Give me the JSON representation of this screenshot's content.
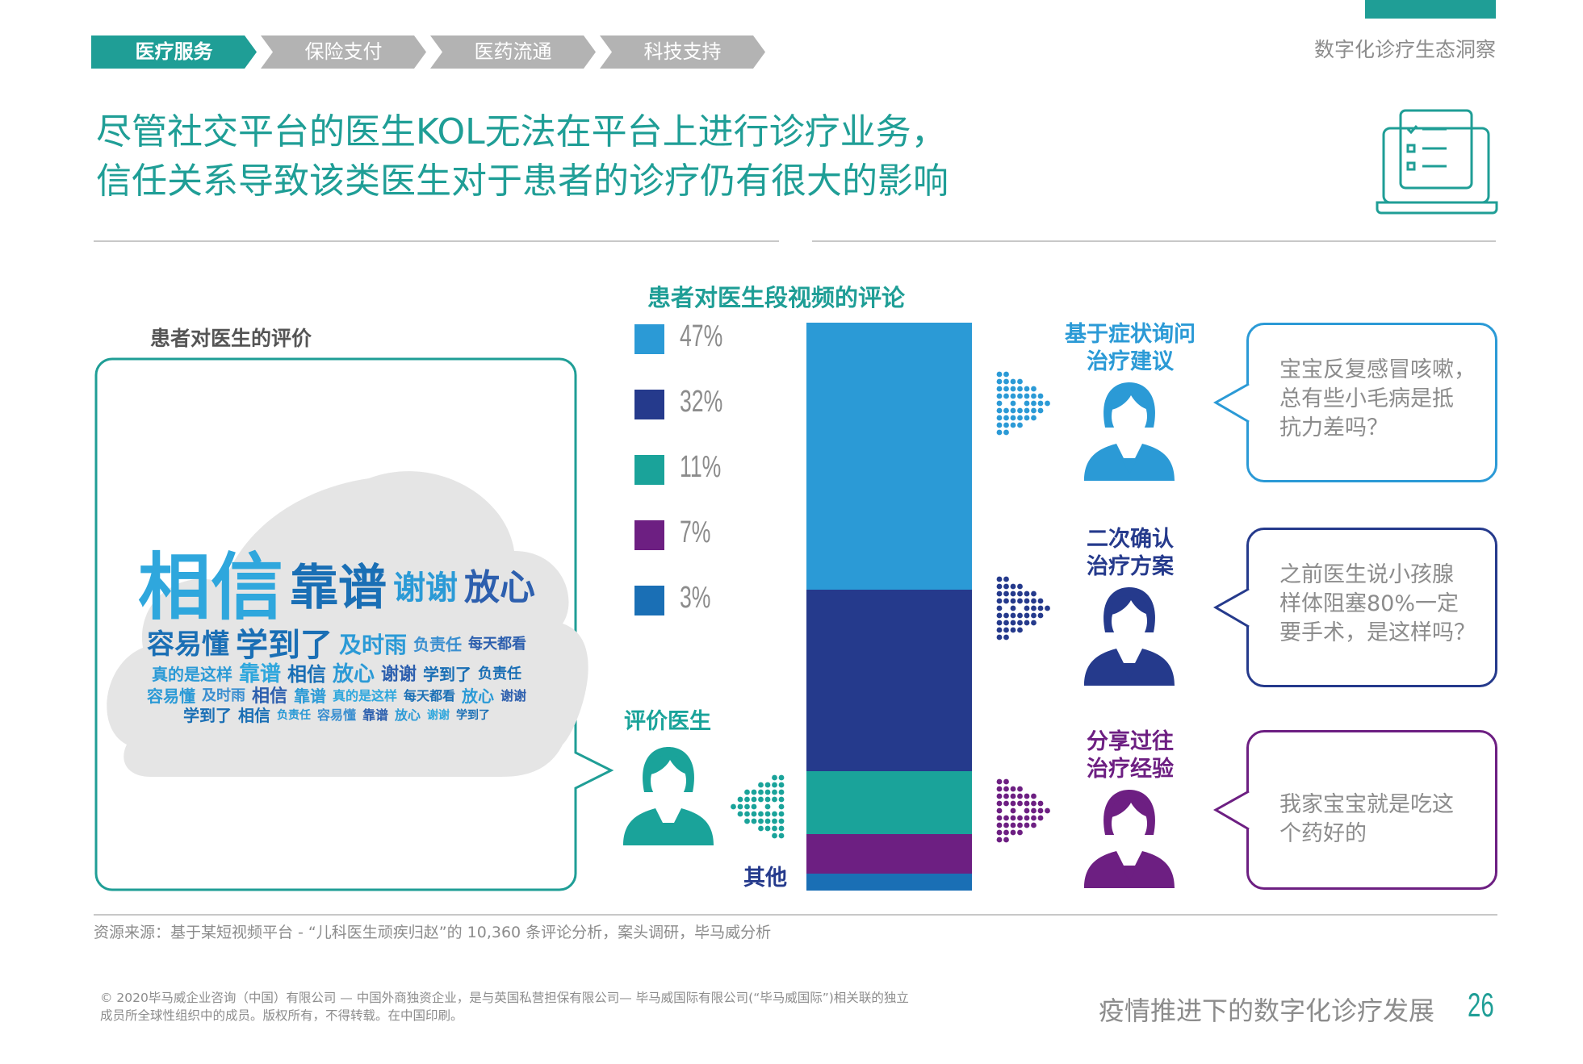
{
  "header": {
    "tabs": [
      {
        "label": "医疗服务",
        "active": true
      },
      {
        "label": "保险支付",
        "active": false
      },
      {
        "label": "医药流通",
        "active": false
      },
      {
        "label": "科技支持",
        "active": false
      }
    ],
    "report_title": "数字化诊疗生态洞察",
    "icon": "checklist-laptop-icon"
  },
  "title": {
    "line1": "尽管社交平台的医生KOL无法在平台上进行诊疗业务，",
    "line2": "信任关系导致该类医生对于患者的诊疗仍有很大的影响"
  },
  "left_panel": {
    "heading": "患者对医生的评价",
    "word_cloud": [
      "相信",
      "靠谱",
      "谢谢",
      "放心",
      "容易懂",
      "学到了",
      "及时雨",
      "负责任",
      "每天都看",
      "真的是这样",
      "靠谱",
      "相信",
      "放心",
      "谢谢",
      "学到了",
      "负责任",
      "容易懂",
      "及时雨",
      "相信",
      "靠谱",
      "真的是这样",
      "每天都看",
      "放心",
      "谢谢",
      "学到了",
      "相信",
      "负责任",
      "容易懂",
      "靠谱",
      "放心",
      "谢谢",
      "学到了"
    ]
  },
  "chart_data": {
    "type": "bar",
    "stacked": true,
    "title": "患者对医生段视频的评论",
    "categories": [
      "基于症状询问治疗建议",
      "二次确认治疗方案",
      "评价医生",
      "分享过往治疗经验",
      "其他"
    ],
    "values": [
      47,
      32,
      11,
      7,
      3
    ],
    "labels": [
      "47%",
      "32%",
      "11%",
      "7%",
      "3%"
    ],
    "colors": [
      "#2b9ad6",
      "#253a8c",
      "#1aa39a",
      "#6d1f82",
      "#1a6fb5"
    ]
  },
  "segments": {
    "evaluate": {
      "label": "评价医生",
      "color": "#1aa39a"
    },
    "other": {
      "label": "其他"
    },
    "items": [
      {
        "label1": "基于症状询问",
        "label2": "治疗建议",
        "color": "#2b9ad6",
        "quote": [
          "宝宝反复感冒咳嗽，",
          "总有些小毛病是抵",
          "抗力差吗？"
        ]
      },
      {
        "label1": "二次确认",
        "label2": "治疗方案",
        "color": "#253a8c",
        "quote": [
          "之前医生说小孩腺",
          "样体阻塞80%一定",
          "要手术，是这样吗？"
        ]
      },
      {
        "label1": "分享过往",
        "label2": "治疗经验",
        "color": "#6d1f82",
        "quote": [
          "我家宝宝就是吃这",
          "个药好的"
        ]
      }
    ]
  },
  "source": "资源来源：基于某短视频平台 - “儿科医生顽疾归赵”的 10,360 条评论分析，案头调研，毕马威分析",
  "footer": {
    "copyright1": "© 2020毕马威企业咨询（中国）有限公司 — 中国外商独资企业，是与英国私营担保有限公司— 毕马威国际有限公司(“毕马威国际”)相关联的独立",
    "copyright2": "成员所全球性组织中的成员。版权所有，不得转载。在中国印刷。",
    "doc_title": "疫情推进下的数字化诊疗发展",
    "page": "26"
  }
}
